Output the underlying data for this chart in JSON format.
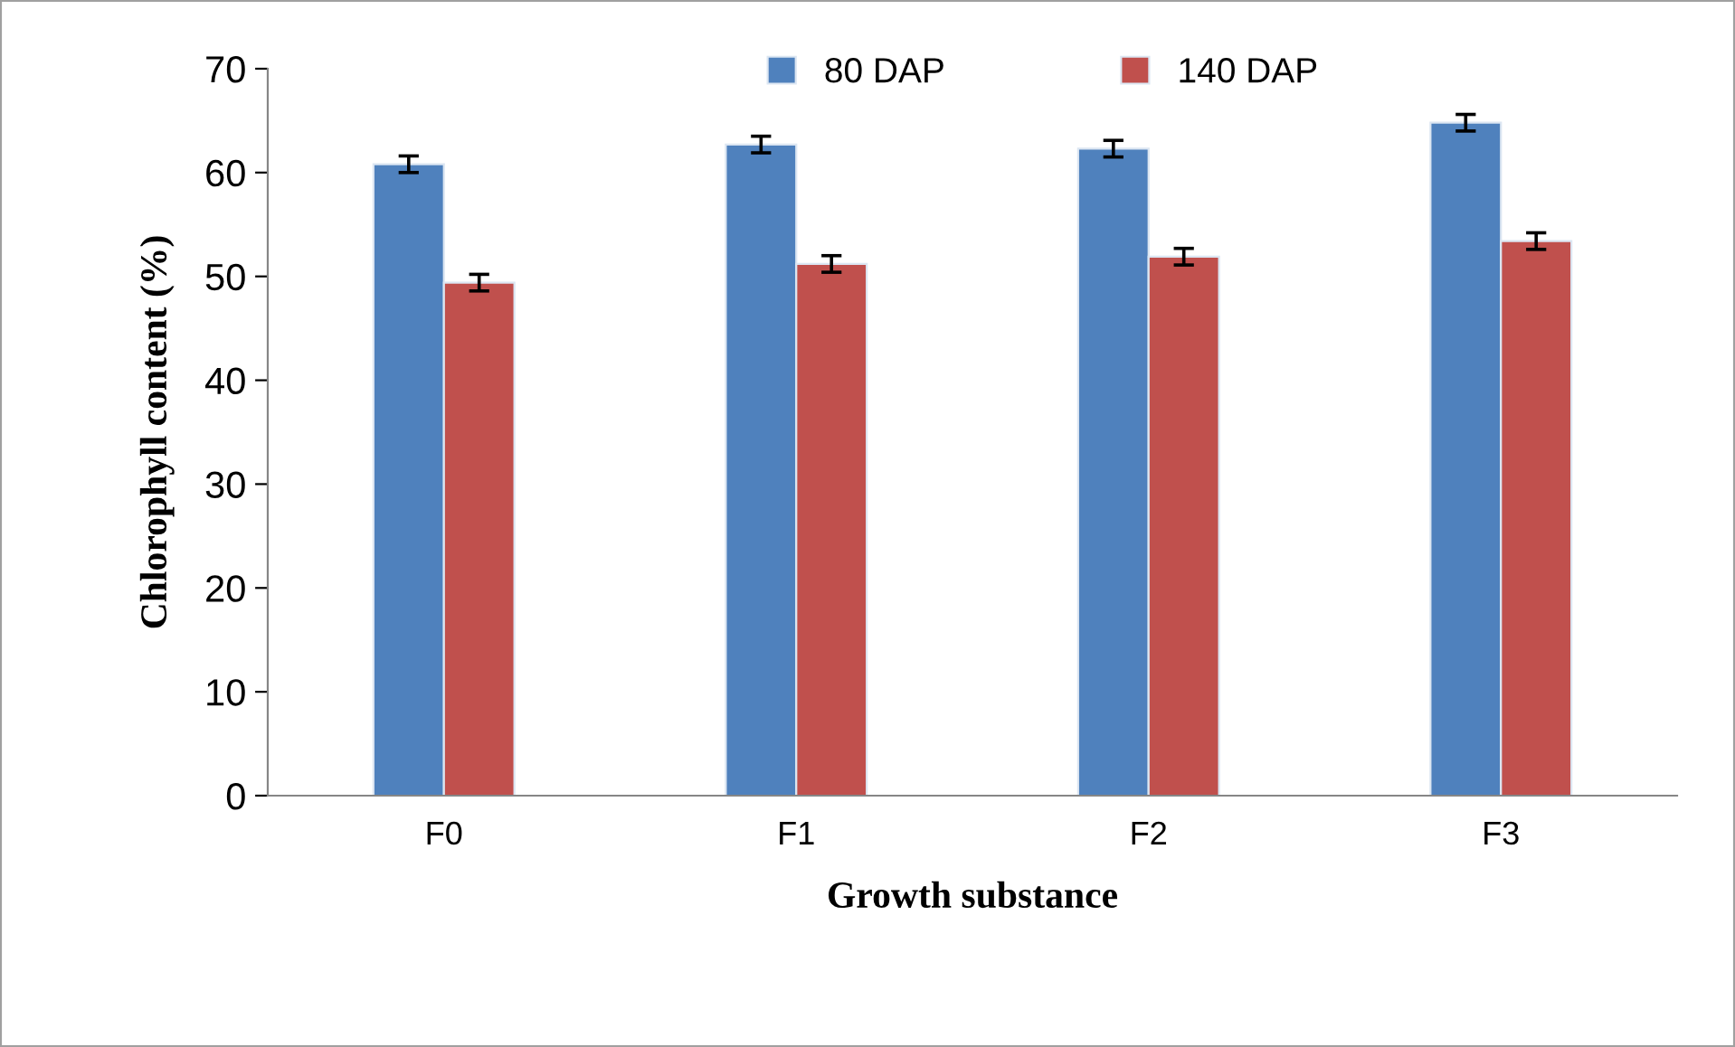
{
  "chart_data": {
    "type": "bar",
    "xlabel": "Growth substance",
    "ylabel": "Chlorophyll content (%)",
    "categories": [
      "F0",
      "F1",
      "F2",
      "F3"
    ],
    "series": [
      {
        "name": "80 DAP",
        "color": "#4f81bd",
        "values": [
          60.8,
          62.7,
          62.3,
          64.8
        ],
        "errors": [
          0.8,
          0.8,
          0.8,
          0.8
        ]
      },
      {
        "name": "140 DAP",
        "color": "#c0504d",
        "values": [
          49.4,
          51.2,
          51.9,
          53.4
        ],
        "errors": [
          0.8,
          0.8,
          0.8,
          0.8
        ]
      }
    ],
    "ylim": [
      0,
      70
    ],
    "yticks": [
      0,
      10,
      20,
      30,
      40,
      50,
      60,
      70
    ],
    "grid": false,
    "legend": "top"
  }
}
